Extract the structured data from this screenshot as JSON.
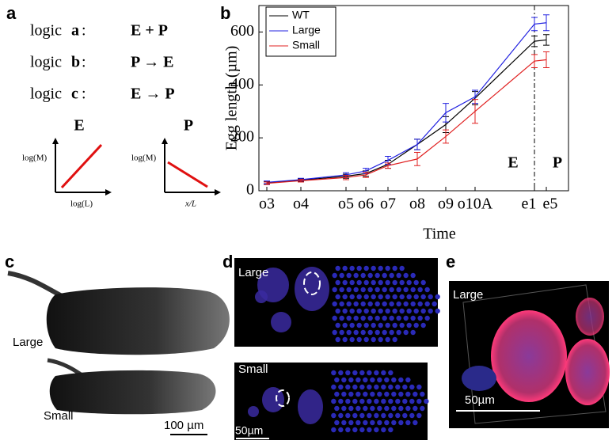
{
  "panel_a": {
    "letter": "a",
    "rules": [
      {
        "prefix": "logic",
        "letter": "a",
        "rule": "E + P"
      },
      {
        "prefix": "logic",
        "letter": "b",
        "rule": "P → E"
      },
      {
        "prefix": "logic",
        "letter": "c",
        "rule": "E → P"
      }
    ],
    "plots": [
      {
        "title": "E",
        "ylabel": "log(M)",
        "xlabel": "log(L)"
      },
      {
        "title": "P",
        "ylabel": "log(M)",
        "xlabel": "x/L"
      }
    ]
  },
  "chart_data": {
    "type": "line",
    "letter": "b",
    "xlabel": "Time",
    "ylabel": "Egg length (µm)",
    "categories": [
      "o3",
      "o4",
      "o5",
      "o6",
      "o7",
      "o8",
      "o9",
      "o10A",
      "e1",
      "e5"
    ],
    "ylim": [
      0,
      700
    ],
    "yticks": [
      0,
      200,
      400,
      600
    ],
    "legend": "upper left",
    "annotations": [
      "E",
      "P"
    ],
    "series": [
      {
        "name": "WT",
        "color": "#000000",
        "values": [
          30,
          40,
          55,
          65,
          100,
          175,
          250,
          350,
          565,
          570
        ],
        "errors": [
          5,
          5,
          8,
          10,
          15,
          20,
          30,
          25,
          20,
          20
        ]
      },
      {
        "name": "Large",
        "color": "#2020e0",
        "values": [
          32,
          42,
          60,
          75,
          115,
          175,
          295,
          355,
          630,
          635
        ],
        "errors": [
          5,
          5,
          8,
          10,
          15,
          20,
          35,
          25,
          25,
          30
        ]
      },
      {
        "name": "Small",
        "color": "#e02020",
        "values": [
          28,
          38,
          50,
          60,
          95,
          120,
          205,
          300,
          490,
          495
        ],
        "errors": [
          5,
          5,
          8,
          10,
          10,
          25,
          25,
          45,
          25,
          30
        ]
      }
    ]
  },
  "panel_c": {
    "letter": "c",
    "labels": [
      "Large",
      "Small"
    ],
    "scale": "100 µm"
  },
  "panel_d": {
    "letter": "d",
    "labels": [
      "Large",
      "Small"
    ],
    "scale": "50µm"
  },
  "panel_e": {
    "letter": "e",
    "label": "Large",
    "scale": "50µm"
  }
}
